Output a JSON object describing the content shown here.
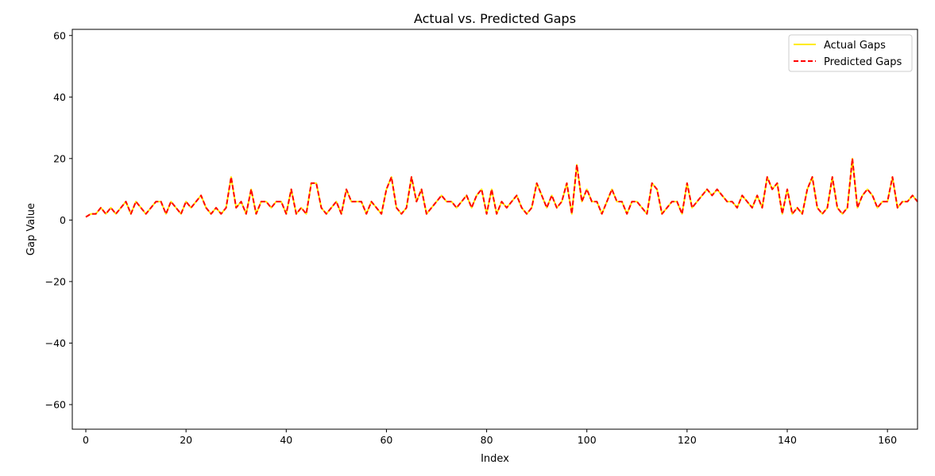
{
  "chart_data": {
    "type": "line",
    "title": "Actual vs. Predicted Gaps",
    "xlabel": "Index",
    "ylabel": "Gap Value",
    "xlim": [
      -2.7,
      166
    ],
    "ylim": [
      -68,
      62
    ],
    "xticks": [
      0,
      20,
      40,
      60,
      80,
      100,
      120,
      140,
      160
    ],
    "yticks": [
      -60,
      -40,
      -20,
      0,
      20,
      40,
      60
    ],
    "legend_position": "top-right",
    "grid": false,
    "series": [
      {
        "name": "Actual Gaps",
        "color": "#ffeb00",
        "style": "solid",
        "values": [
          1,
          2,
          2,
          4,
          2,
          4,
          2,
          4,
          6,
          2,
          6,
          4,
          2,
          4,
          6,
          6,
          2,
          6,
          4,
          2,
          6,
          4,
          6,
          8,
          4,
          2,
          4,
          2,
          4,
          14,
          4,
          6,
          2,
          10,
          2,
          6,
          6,
          4,
          6,
          6,
          2,
          10,
          2,
          4,
          2,
          12,
          12,
          4,
          2,
          4,
          6,
          2,
          10,
          6,
          6,
          6,
          2,
          6,
          4,
          2,
          10,
          14,
          4,
          2,
          4,
          14,
          6,
          10,
          2,
          4,
          6,
          8,
          6,
          6,
          4,
          6,
          8,
          4,
          8,
          10,
          2,
          10,
          2,
          6,
          4,
          6,
          8,
          4,
          2,
          4,
          12,
          8,
          4,
          8,
          4,
          6,
          12,
          2,
          18,
          6,
          10,
          6,
          6,
          2,
          6,
          10,
          6,
          6,
          2,
          6,
          6,
          4,
          2,
          12,
          10,
          2,
          4,
          6,
          6,
          2,
          12,
          4,
          6,
          8,
          10,
          8,
          10,
          8,
          6,
          6,
          4,
          8,
          6,
          4,
          8,
          4,
          14,
          10,
          12,
          2,
          10,
          2,
          4,
          2,
          10,
          14,
          4,
          2,
          4,
          14,
          4,
          2,
          4,
          20,
          4,
          8,
          10,
          8,
          4,
          6,
          6,
          14,
          4,
          6,
          6,
          8,
          6
        ]
      },
      {
        "name": "Predicted Gaps",
        "color": "#ff0000",
        "style": "dashed",
        "values": [
          1,
          2,
          2,
          4,
          2,
          4,
          2,
          4,
          6,
          2,
          6,
          4,
          2,
          4,
          6,
          6,
          2,
          6,
          4,
          2,
          6,
          4,
          6,
          8,
          4,
          2,
          4,
          2,
          4,
          14,
          4,
          6,
          2,
          10,
          2,
          6,
          6,
          4,
          6,
          6,
          2,
          10,
          2,
          4,
          2,
          12,
          12,
          4,
          2,
          4,
          6,
          2,
          10,
          6,
          6,
          6,
          2,
          6,
          4,
          2,
          10,
          14,
          4,
          2,
          4,
          14,
          6,
          10,
          2,
          4,
          6,
          8,
          6,
          6,
          4,
          6,
          8,
          4,
          8,
          10,
          2,
          10,
          2,
          6,
          4,
          6,
          8,
          4,
          2,
          4,
          12,
          8,
          4,
          8,
          4,
          6,
          12,
          2,
          18,
          6,
          10,
          6,
          6,
          2,
          6,
          10,
          6,
          6,
          2,
          6,
          6,
          4,
          2,
          12,
          10,
          2,
          4,
          6,
          6,
          2,
          12,
          4,
          6,
          8,
          10,
          8,
          10,
          8,
          6,
          6,
          4,
          8,
          6,
          4,
          8,
          4,
          14,
          10,
          12,
          2,
          10,
          2,
          4,
          2,
          10,
          14,
          4,
          2,
          4,
          14,
          4,
          2,
          4,
          20,
          4,
          8,
          10,
          8,
          4,
          6,
          6,
          14,
          4,
          6,
          6,
          8,
          6
        ]
      }
    ]
  }
}
